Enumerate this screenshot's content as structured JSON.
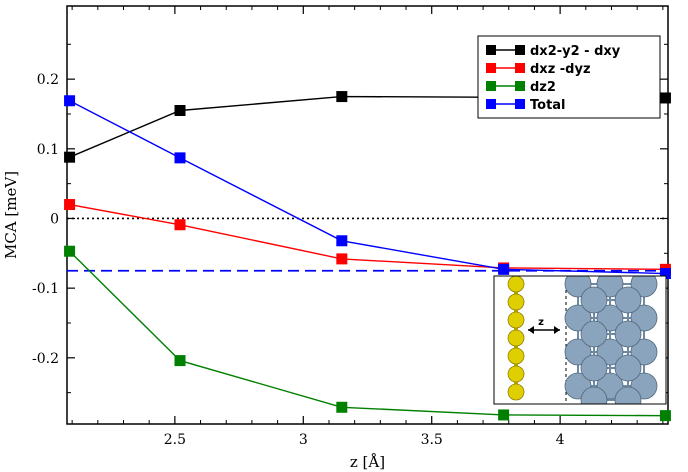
{
  "chart_data": {
    "type": "line",
    "xlabel": "z [Å]",
    "ylabel": "MCA [meV]",
    "xlim": [
      2.08,
      4.42
    ],
    "ylim": [
      -0.295,
      0.305
    ],
    "xticks": [
      2.5,
      3,
      3.5,
      4
    ],
    "xtick_labels": [
      "2.5",
      "3",
      "3.5",
      "4"
    ],
    "yticks": [
      -0.2,
      -0.1,
      0,
      0.1,
      0.2
    ],
    "ytick_labels": [
      "-0.2",
      "-0.1",
      "0",
      "0.1",
      "0.2"
    ],
    "x": [
      2.09,
      2.52,
      3.15,
      3.78,
      4.41
    ],
    "series": [
      {
        "name": "dx2-y2 - dxy",
        "color": "#000000",
        "values": [
          0.088,
          0.155,
          0.175,
          null,
          0.173
        ]
      },
      {
        "name": "dxz -dyz",
        "color": "#ff0000",
        "values": [
          0.02,
          -0.009,
          -0.058,
          -0.071,
          -0.073
        ]
      },
      {
        "name": "dz2",
        "color": "#008000",
        "values": [
          -0.047,
          -0.204,
          -0.271,
          -0.282,
          -0.283
        ]
      },
      {
        "name": "Total",
        "color": "#0000ff",
        "values": [
          0.169,
          0.087,
          -0.032,
          -0.073,
          -0.079
        ]
      }
    ],
    "reference_lines": [
      {
        "y": 0,
        "style": "dotted",
        "color": "#000000"
      },
      {
        "y": -0.075,
        "style": "dashed",
        "color": "#0000ff"
      }
    ],
    "legend_position": "top-right",
    "grid": false
  },
  "inset": {
    "label": "z",
    "description_icon": "structure-inset"
  }
}
